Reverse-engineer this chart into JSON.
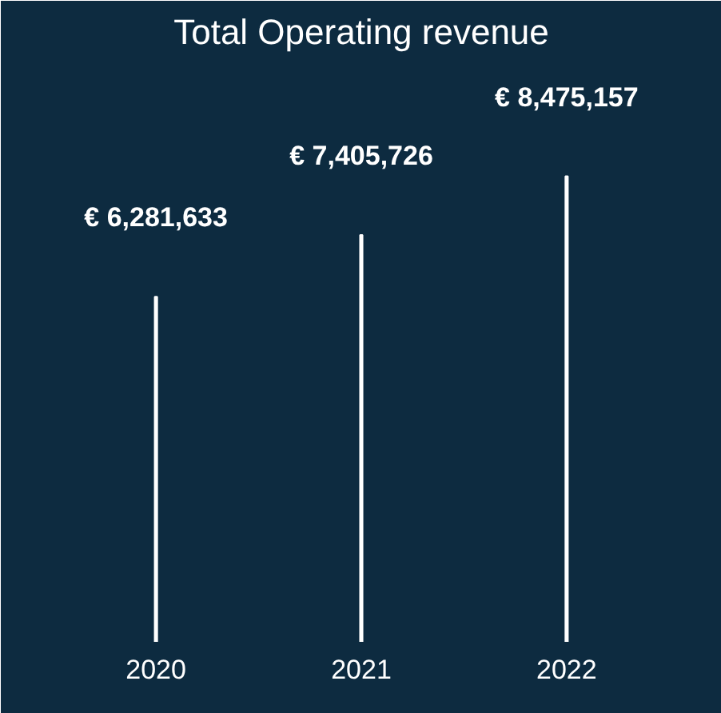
{
  "chart_data": {
    "type": "bar",
    "title": "Total Operating revenue",
    "categories": [
      "2020",
      "2021",
      "2022"
    ],
    "values": [
      6281633,
      7405726,
      8475157
    ],
    "color": "#ffffff",
    "value_labels": [
      "€ 6,281,633",
      "€ 7,405,726",
      "€ 8,475,157"
    ],
    "grid": false,
    "tick_labels": "x"
  }
}
